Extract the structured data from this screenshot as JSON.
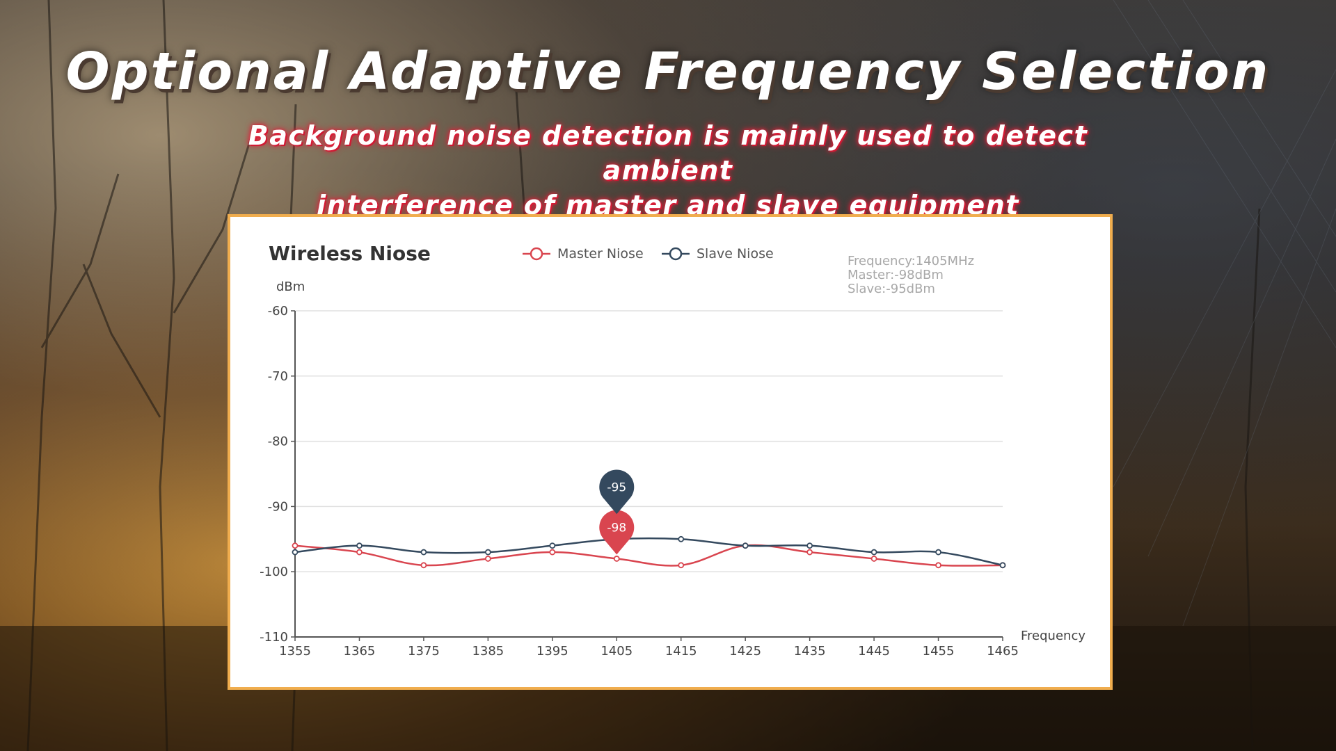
{
  "header": {
    "title": "Optional Adaptive Frequency Selection",
    "subtitle_line1": "Background noise detection is mainly used to detect ambient",
    "subtitle_line2": "interference of master and slave equipment"
  },
  "tooltip": {
    "frequency": "Frequency:1405MHz",
    "master": "Master:-98dBm",
    "slave": "Slave:-95dBm"
  },
  "chart_data": {
    "type": "line",
    "title": "Wireless Niose",
    "xlabel": "Frequency",
    "ylabel": "dBm",
    "x": [
      1355,
      1365,
      1375,
      1385,
      1395,
      1405,
      1415,
      1425,
      1435,
      1445,
      1455,
      1465
    ],
    "ylim": [
      -110,
      -60
    ],
    "yticks": [
      -60,
      -70,
      -80,
      -90,
      -100,
      -110
    ],
    "grid": true,
    "legend": "top",
    "series": [
      {
        "name": "Master Niose",
        "color": "#d9454f",
        "values": [
          -96,
          -97,
          -99,
          -98,
          -97,
          -98,
          -99,
          -96,
          -97,
          -98,
          -99,
          -99
        ]
      },
      {
        "name": "Slave Niose",
        "color": "#34495e",
        "values": [
          -97,
          -96,
          -97,
          -97,
          -96,
          -95,
          -95,
          -96,
          -96,
          -97,
          -97,
          -99
        ]
      }
    ],
    "markers": [
      {
        "series": "Slave Niose",
        "x": 1405,
        "label": "-95"
      },
      {
        "series": "Master Niose",
        "x": 1405,
        "label": "-98"
      }
    ]
  }
}
